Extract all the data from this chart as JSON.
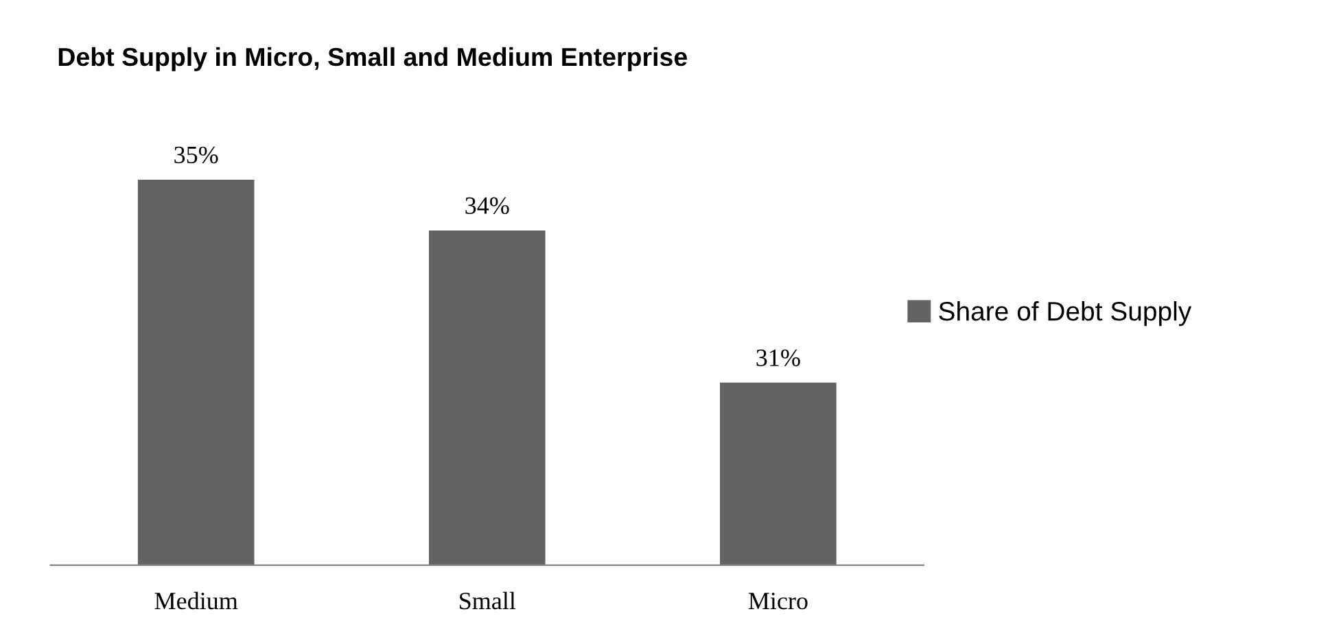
{
  "chart_data": {
    "type": "bar",
    "title": "Debt Supply in Micro, Small and Medium Enterprise",
    "categories": [
      "Medium",
      "Small",
      "Micro"
    ],
    "series": [
      {
        "name": "Share of Debt Supply",
        "color": "#636363",
        "values": [
          35,
          34,
          31
        ],
        "value_labels": [
          "35%",
          "34%",
          "31%"
        ]
      }
    ],
    "ylim": [
      27.4,
      35
    ],
    "tick_labels": "x",
    "legend": "right"
  }
}
